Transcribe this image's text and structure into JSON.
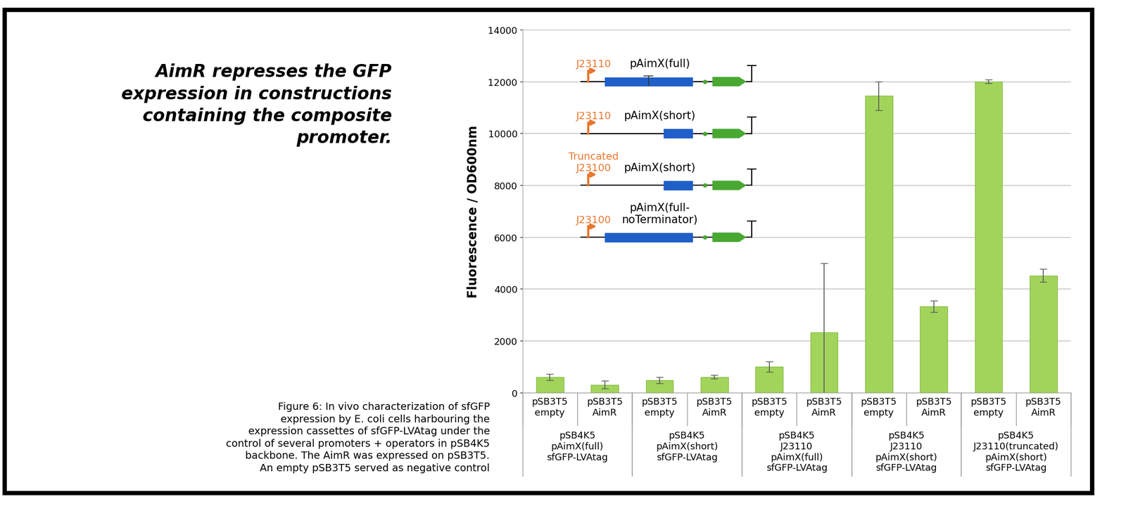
{
  "chart_data": {
    "type": "bar",
    "heading": "AimR represses the GFP\nexpression in constructions\ncontaining the composite\npromoter.",
    "caption": "Figure 6: In vivo characterization of sfGFP\nexpression by E. coli cells harbouring the\nexpression cassettes of sfGFP-LVAtag under the\ncontrol of several promoters + operators in pSB4K5\nbackbone. The AimR was expressed on pSB3T5.\nAn empty pSB3T5 served as negative control",
    "ylabel": "Fluorescence / OD600nm",
    "groups": [
      {
        "label": "pSB4K5\npAimX(full)\nsfGFP-LVAtag",
        "categories": [
          "pSB3T5\nempty",
          "pSB3T5\nAimR"
        ],
        "values": [
          600,
          300
        ],
        "errors": [
          120,
          150
        ]
      },
      {
        "label": "pSB4K5\npAimX(short)\nsfGFP-LVAtag",
        "categories": [
          "pSB3T5\nempty",
          "pSB3T5\nAimR"
        ],
        "values": [
          470,
          600
        ],
        "errors": [
          120,
          70
        ]
      },
      {
        "label": "pSB4K5\nJ23110\npAimX(full)\nsfGFP-LVAtag",
        "categories": [
          "pSB3T5\nempty",
          "pSB3T5\nAimR"
        ],
        "values": [
          1000,
          2330
        ],
        "errors": [
          200,
          2670
        ]
      },
      {
        "label": "pSB4K5\nJ23110\npAimX(short)\nsfGFP-LVAtag",
        "categories": [
          "pSB3T5\nempty",
          "pSB3T5\nAimR"
        ],
        "values": [
          11450,
          3320
        ],
        "errors": [
          550,
          220
        ]
      },
      {
        "label": "pSB4K5\nJ23110(truncated)\npAimX(short)\nsfGFP-LVAtag",
        "categories": [
          "pSB3T5\nempty",
          "pSB3T5\nAimR"
        ],
        "values": [
          12000,
          4520
        ],
        "errors": [
          70,
          250
        ]
      }
    ],
    "constructs": [
      {
        "promoter": "J23110",
        "name": "pAimX(full)"
      },
      {
        "promoter": "J23110",
        "name": "pAimX(short)"
      },
      {
        "promoter": "Truncated\nJ23100",
        "name": "pAimX(short)"
      },
      {
        "promoter": "J23100",
        "name": "pAimX(full-\nnoTerminator)"
      }
    ],
    "color": "#a2d45c",
    "ylim": [
      0,
      14000
    ],
    "yticks": [
      0,
      2000,
      4000,
      6000,
      8000,
      10000,
      12000,
      14000
    ],
    "grid": true
  }
}
